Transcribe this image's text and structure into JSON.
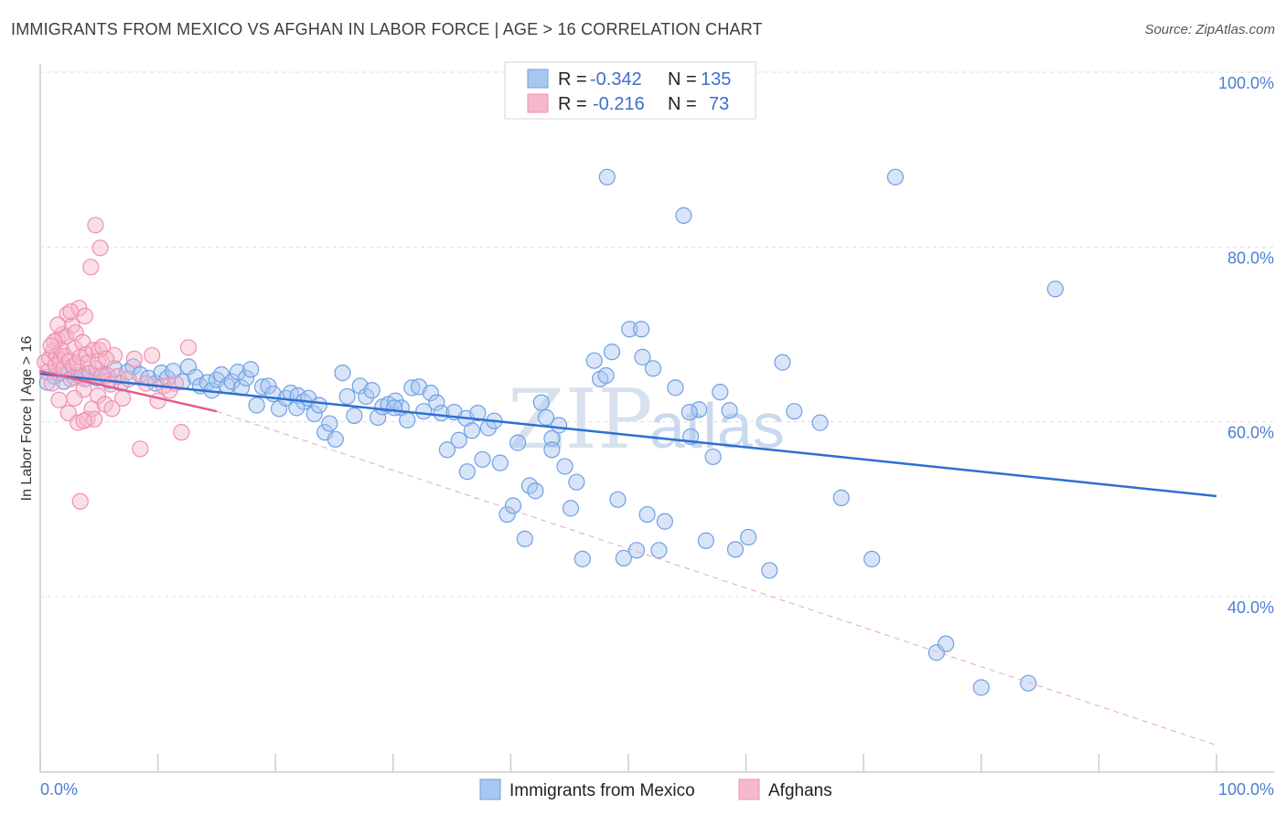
{
  "header": {
    "title": "IMMIGRANTS FROM MEXICO VS AFGHAN IN LABOR FORCE | AGE > 16 CORRELATION CHART",
    "source": "Source: ZipAtlas.com"
  },
  "watermark": {
    "zip": "ZIP",
    "atlas": "atlas"
  },
  "legend": {
    "rows": [
      {
        "r_label": "R =",
        "r_value": "-0.342",
        "n_label": "N =",
        "n_value": "135",
        "color": "#a8c6f0"
      },
      {
        "r_label": "R =",
        "r_value": "-0.216",
        "n_label": "N =",
        "n_value": "73",
        "color": "#f5b8cc"
      }
    ]
  },
  "bottom_legend": {
    "items": [
      {
        "label": "Immigrants from Mexico",
        "color": "#a8c6f0"
      },
      {
        "label": "Afghans",
        "color": "#f5b8cc"
      }
    ]
  },
  "chart_data": {
    "type": "scatter",
    "title": "IMMIGRANTS FROM MEXICO VS AFGHAN IN LABOR FORCE | AGE > 16 CORRELATION CHART",
    "ylabel": "In Labor Force | Age > 16",
    "xlabel": "",
    "xlim": [
      0,
      100
    ],
    "ylim": [
      20,
      105
    ],
    "x_tick_labels": [
      "0.0%",
      "100.0%"
    ],
    "y_ticks": [
      40,
      60,
      80,
      100
    ],
    "y_tick_labels": [
      "40.0%",
      "60.0%",
      "80.0%",
      "100.0%"
    ],
    "grid": true,
    "legend_position": "top-center",
    "series": [
      {
        "name": "Immigrants from Mexico",
        "color": "#6fa0e6",
        "trend": {
          "x": [
            0,
            100
          ],
          "y": [
            65.5,
            51.5
          ],
          "style": "solid",
          "color": "#2f6fd1"
        },
        "points": [
          [
            0.6,
            64.5
          ],
          [
            1.2,
            65.2
          ],
          [
            1.6,
            65.5
          ],
          [
            2.0,
            64.6
          ],
          [
            2.4,
            65.8
          ],
          [
            2.9,
            65.1
          ],
          [
            3.3,
            65.3
          ],
          [
            3.8,
            64.9
          ],
          [
            4.3,
            65.6
          ],
          [
            4.8,
            65.0
          ],
          [
            5.3,
            65.4
          ],
          [
            5.8,
            64.7
          ],
          [
            6.3,
            66.1
          ],
          [
            6.9,
            64.4
          ],
          [
            7.4,
            65.7
          ],
          [
            7.9,
            66.3
          ],
          [
            8.5,
            65.4
          ],
          [
            9.2,
            65.0
          ],
          [
            9.8,
            64.4
          ],
          [
            10.3,
            65.6
          ],
          [
            10.8,
            65.0
          ],
          [
            11.3,
            65.8
          ],
          [
            12.1,
            64.6
          ],
          [
            12.6,
            66.3
          ],
          [
            13.2,
            65.1
          ],
          [
            13.6,
            64.1
          ],
          [
            14.2,
            64.5
          ],
          [
            14.6,
            63.6
          ],
          [
            15.0,
            64.8
          ],
          [
            15.4,
            65.4
          ],
          [
            15.9,
            64.1
          ],
          [
            16.3,
            64.6
          ],
          [
            16.8,
            65.7
          ],
          [
            17.1,
            63.9
          ],
          [
            17.5,
            65.0
          ],
          [
            17.9,
            66.0
          ],
          [
            18.4,
            61.9
          ],
          [
            18.9,
            64.0
          ],
          [
            19.4,
            64.1
          ],
          [
            19.8,
            63.2
          ],
          [
            20.3,
            61.5
          ],
          [
            20.9,
            62.7
          ],
          [
            21.3,
            63.3
          ],
          [
            21.9,
            63.0
          ],
          [
            22.4,
            62.3
          ],
          [
            22.8,
            62.7
          ],
          [
            23.3,
            60.9
          ],
          [
            23.7,
            61.9
          ],
          [
            24.2,
            58.8
          ],
          [
            24.6,
            59.8
          ],
          [
            25.1,
            58.0
          ],
          [
            25.7,
            65.6
          ],
          [
            26.1,
            62.9
          ],
          [
            26.7,
            60.7
          ],
          [
            27.2,
            64.1
          ],
          [
            27.7,
            62.9
          ],
          [
            28.2,
            63.6
          ],
          [
            28.7,
            60.5
          ],
          [
            29.1,
            61.7
          ],
          [
            29.6,
            62.0
          ],
          [
            30.2,
            62.4
          ],
          [
            30.7,
            61.6
          ],
          [
            31.2,
            60.2
          ],
          [
            31.6,
            63.9
          ],
          [
            32.2,
            64.0
          ],
          [
            32.6,
            61.2
          ],
          [
            33.2,
            63.3
          ],
          [
            33.7,
            62.2
          ],
          [
            34.1,
            61.0
          ],
          [
            34.6,
            56.8
          ],
          [
            35.2,
            61.1
          ],
          [
            35.6,
            57.9
          ],
          [
            36.2,
            60.4
          ],
          [
            36.7,
            59.0
          ],
          [
            37.2,
            61.0
          ],
          [
            37.6,
            55.7
          ],
          [
            38.1,
            59.3
          ],
          [
            38.6,
            60.1
          ],
          [
            39.1,
            55.3
          ],
          [
            39.7,
            49.4
          ],
          [
            40.2,
            50.4
          ],
          [
            40.6,
            57.6
          ],
          [
            41.2,
            46.6
          ],
          [
            41.6,
            52.7
          ],
          [
            42.1,
            52.1
          ],
          [
            42.6,
            62.2
          ],
          [
            43.0,
            60.5
          ],
          [
            43.5,
            58.1
          ],
          [
            44.1,
            59.6
          ],
          [
            44.6,
            54.9
          ],
          [
            45.1,
            50.1
          ],
          [
            45.6,
            53.1
          ],
          [
            46.1,
            44.3
          ],
          [
            47.1,
            67.0
          ],
          [
            47.6,
            64.9
          ],
          [
            48.1,
            65.3
          ],
          [
            48.6,
            68.0
          ],
          [
            49.1,
            51.1
          ],
          [
            49.6,
            44.4
          ],
          [
            50.1,
            70.6
          ],
          [
            50.7,
            45.3
          ],
          [
            51.2,
            67.4
          ],
          [
            51.6,
            49.4
          ],
          [
            52.1,
            66.1
          ],
          [
            52.6,
            45.3
          ],
          [
            53.1,
            48.6
          ],
          [
            54.0,
            63.9
          ],
          [
            54.7,
            83.6
          ],
          [
            55.3,
            58.3
          ],
          [
            56.0,
            61.4
          ],
          [
            56.6,
            46.4
          ],
          [
            57.2,
            56.0
          ],
          [
            57.8,
            63.4
          ],
          [
            59.1,
            45.4
          ],
          [
            60.2,
            46.8
          ],
          [
            62.0,
            43.0
          ],
          [
            63.1,
            66.8
          ],
          [
            64.1,
            61.2
          ],
          [
            66.3,
            59.9
          ],
          [
            68.1,
            51.3
          ],
          [
            70.7,
            44.3
          ],
          [
            72.7,
            88.0
          ],
          [
            76.2,
            33.6
          ],
          [
            77.0,
            34.6
          ],
          [
            80.0,
            29.6
          ],
          [
            84.0,
            30.1
          ],
          [
            86.3,
            75.2
          ],
          [
            51.1,
            70.6
          ],
          [
            55.2,
            61.1
          ],
          [
            58.6,
            61.3
          ],
          [
            43.5,
            56.8
          ],
          [
            36.3,
            54.3
          ],
          [
            30.1,
            61.6
          ],
          [
            21.8,
            61.6
          ],
          [
            48.2,
            88.0
          ]
        ]
      },
      {
        "name": "Afghans",
        "color": "#f08fb0",
        "trend": {
          "x": [
            0,
            15
          ],
          "y": [
            65.8,
            61.2
          ],
          "style": "solid",
          "color": "#e35b8c"
        },
        "trend_extended": {
          "x": [
            15,
            100
          ],
          "y": [
            61.2,
            23
          ],
          "style": "dashed",
          "color": "#e8a5bd"
        },
        "points": [
          [
            0.4,
            66.8
          ],
          [
            0.6,
            65.7
          ],
          [
            0.8,
            67.3
          ],
          [
            1.0,
            64.4
          ],
          [
            1.1,
            68.1
          ],
          [
            1.3,
            66.5
          ],
          [
            1.4,
            67.6
          ],
          [
            1.5,
            69.4
          ],
          [
            1.6,
            62.5
          ],
          [
            1.7,
            67.0
          ],
          [
            1.8,
            68.2
          ],
          [
            1.9,
            70.0
          ],
          [
            2.0,
            66.1
          ],
          [
            2.1,
            67.5
          ],
          [
            2.2,
            69.8
          ],
          [
            2.3,
            72.3
          ],
          [
            2.4,
            61.0
          ],
          [
            2.5,
            67.0
          ],
          [
            2.6,
            64.9
          ],
          [
            2.7,
            71.0
          ],
          [
            2.8,
            66.4
          ],
          [
            2.9,
            68.4
          ],
          [
            3.0,
            70.2
          ],
          [
            3.1,
            66.7
          ],
          [
            3.2,
            59.9
          ],
          [
            3.3,
            73.0
          ],
          [
            3.4,
            67.4
          ],
          [
            3.5,
            65.1
          ],
          [
            3.6,
            69.1
          ],
          [
            3.7,
            63.7
          ],
          [
            3.8,
            72.1
          ],
          [
            3.9,
            67.7
          ],
          [
            4.0,
            60.3
          ],
          [
            4.1,
            66.8
          ],
          [
            4.2,
            65.6
          ],
          [
            4.3,
            77.7
          ],
          [
            4.4,
            61.5
          ],
          [
            4.5,
            68.2
          ],
          [
            4.6,
            60.3
          ],
          [
            4.7,
            82.5
          ],
          [
            4.8,
            66.1
          ],
          [
            4.9,
            63.0
          ],
          [
            5.0,
            68.2
          ],
          [
            5.1,
            79.9
          ],
          [
            5.2,
            65.2
          ],
          [
            5.3,
            68.6
          ],
          [
            5.5,
            62.0
          ],
          [
            5.7,
            65.3
          ],
          [
            6.0,
            64.3
          ],
          [
            6.3,
            67.6
          ],
          [
            6.6,
            65.2
          ],
          [
            7.0,
            62.7
          ],
          [
            7.5,
            64.9
          ],
          [
            8.0,
            67.2
          ],
          [
            8.5,
            56.9
          ],
          [
            9.0,
            64.4
          ],
          [
            9.5,
            67.6
          ],
          [
            10.0,
            62.4
          ],
          [
            10.5,
            64.1
          ],
          [
            11.0,
            63.6
          ],
          [
            11.5,
            64.4
          ],
          [
            12.0,
            58.8
          ],
          [
            3.4,
            50.9
          ],
          [
            2.6,
            72.6
          ],
          [
            1.2,
            69.2
          ],
          [
            1.5,
            71.1
          ],
          [
            2.9,
            62.7
          ],
          [
            3.7,
            60.1
          ],
          [
            4.9,
            66.9
          ],
          [
            5.6,
            67.2
          ],
          [
            6.1,
            61.5
          ],
          [
            12.6,
            68.5
          ],
          [
            0.9,
            68.7
          ]
        ]
      }
    ]
  }
}
